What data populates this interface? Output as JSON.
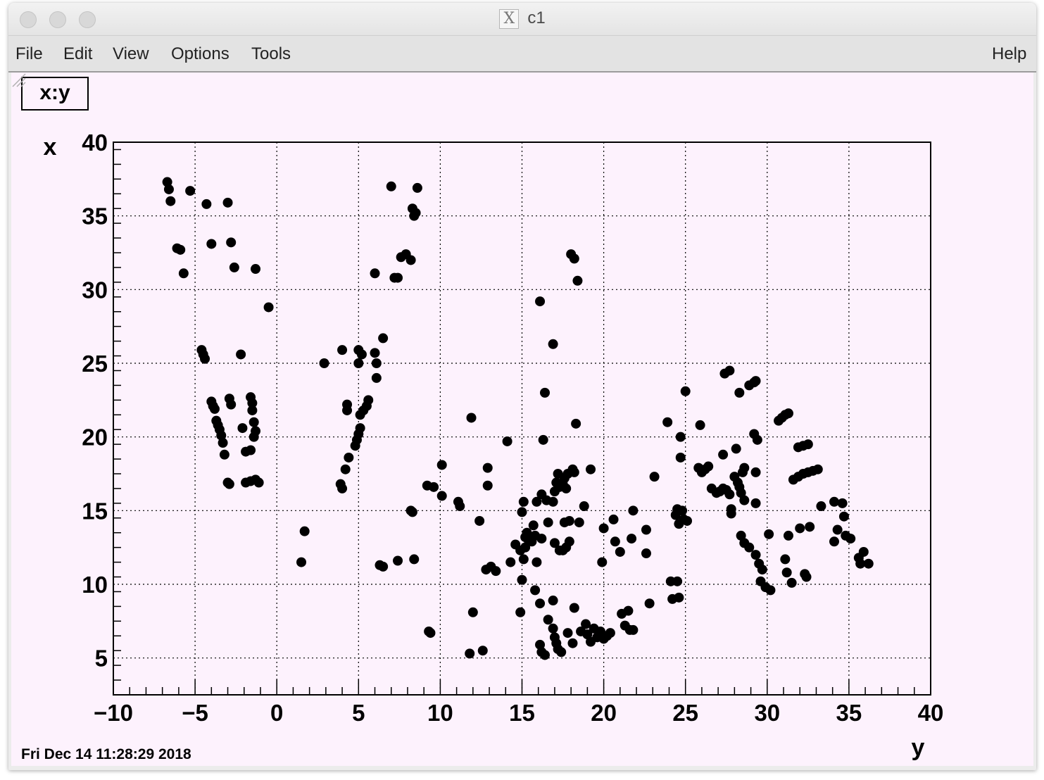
{
  "window": {
    "title": "c1",
    "x_glyph": "X",
    "buttons": [
      "close-button",
      "minimize-button",
      "zoom-button"
    ]
  },
  "menu": {
    "file": "File",
    "edit": "Edit",
    "view": "View",
    "options": "Options",
    "tools": "Tools",
    "help": "Help"
  },
  "canvas": {
    "title": "x:y",
    "date": "Fri Dec 14 11:28:29 2018",
    "background": "#fdf2fd"
  },
  "chart_data": {
    "type": "scatter",
    "title": "x:y",
    "xlabel": "y",
    "ylabel": "x",
    "xlim": [
      -10,
      40
    ],
    "ylim": [
      2.5,
      40
    ],
    "xticks": [
      -10,
      -5,
      0,
      5,
      10,
      15,
      20,
      25,
      30,
      35,
      40
    ],
    "yticks": [
      5,
      10,
      15,
      20,
      25,
      30,
      35,
      40
    ],
    "xtick_labels": [
      "−10",
      "−5",
      "0",
      "5",
      "10",
      "15",
      "20",
      "25",
      "30",
      "35",
      "40"
    ],
    "ytick_labels": [
      "5",
      "10",
      "15",
      "20",
      "25",
      "30",
      "35",
      "40"
    ],
    "grid": true,
    "marker_color": "#000000",
    "points": [
      [
        -6.7,
        37.3
      ],
      [
        -6.6,
        36.8
      ],
      [
        -6.5,
        36.0
      ],
      [
        -5.3,
        36.7
      ],
      [
        -4.3,
        35.8
      ],
      [
        -3.0,
        35.9
      ],
      [
        -6.1,
        32.8
      ],
      [
        -5.9,
        32.7
      ],
      [
        -5.7,
        31.1
      ],
      [
        -4.0,
        33.1
      ],
      [
        -2.8,
        33.2
      ],
      [
        -2.6,
        31.5
      ],
      [
        -1.3,
        31.4
      ],
      [
        -0.5,
        28.8
      ],
      [
        -4.6,
        25.9
      ],
      [
        -4.5,
        25.6
      ],
      [
        -4.4,
        25.3
      ],
      [
        -2.2,
        25.6
      ],
      [
        -4.0,
        22.4
      ],
      [
        -3.9,
        22.1
      ],
      [
        -3.8,
        21.9
      ],
      [
        -3.7,
        21.1
      ],
      [
        -3.6,
        20.8
      ],
      [
        -3.5,
        20.5
      ],
      [
        -3.4,
        20.1
      ],
      [
        -3.3,
        19.6
      ],
      [
        -3.2,
        18.8
      ],
      [
        -3.0,
        16.9
      ],
      [
        -2.9,
        16.8
      ],
      [
        -2.9,
        22.6
      ],
      [
        -2.8,
        22.2
      ],
      [
        -1.6,
        22.7
      ],
      [
        -1.5,
        22.3
      ],
      [
        -1.5,
        21.8
      ],
      [
        -1.4,
        21.0
      ],
      [
        -1.3,
        20.4
      ],
      [
        -1.4,
        20.0
      ],
      [
        -2.1,
        20.6
      ],
      [
        -1.9,
        19.0
      ],
      [
        -1.6,
        19.1
      ],
      [
        -1.9,
        16.9
      ],
      [
        -1.6,
        17.0
      ],
      [
        -1.3,
        17.1
      ],
      [
        -1.1,
        16.9
      ],
      [
        1.5,
        11.5
      ],
      [
        1.7,
        13.6
      ],
      [
        2.9,
        25.0
      ],
      [
        4.0,
        25.9
      ],
      [
        3.9,
        16.8
      ],
      [
        4.0,
        16.5
      ],
      [
        4.2,
        17.8
      ],
      [
        4.4,
        18.6
      ],
      [
        4.3,
        22.2
      ],
      [
        4.3,
        21.8
      ],
      [
        4.8,
        19.4
      ],
      [
        4.9,
        19.8
      ],
      [
        5.0,
        20.2
      ],
      [
        5.1,
        20.6
      ],
      [
        5.1,
        21.5
      ],
      [
        5.3,
        21.8
      ],
      [
        5.5,
        22.1
      ],
      [
        5.6,
        22.5
      ],
      [
        5.0,
        25.0
      ],
      [
        5.2,
        25.6
      ],
      [
        5.0,
        25.9
      ],
      [
        6.0,
        25.7
      ],
      [
        6.1,
        25.0
      ],
      [
        6.1,
        24.0
      ],
      [
        6.5,
        26.7
      ],
      [
        6.0,
        31.1
      ],
      [
        6.3,
        11.3
      ],
      [
        6.5,
        11.2
      ],
      [
        7.4,
        11.6
      ],
      [
        8.4,
        11.7
      ],
      [
        7.0,
        37.0
      ],
      [
        8.6,
        36.9
      ],
      [
        8.3,
        35.5
      ],
      [
        8.4,
        35.0
      ],
      [
        8.5,
        35.2
      ],
      [
        7.2,
        30.8
      ],
      [
        7.4,
        30.8
      ],
      [
        7.6,
        32.2
      ],
      [
        7.9,
        32.4
      ],
      [
        8.2,
        32.0
      ],
      [
        8.3,
        14.9
      ],
      [
        8.2,
        15.0
      ],
      [
        9.2,
        16.7
      ],
      [
        9.6,
        16.6
      ],
      [
        10.1,
        16.0
      ],
      [
        10.1,
        18.1
      ],
      [
        9.3,
        6.8
      ],
      [
        9.4,
        6.7
      ],
      [
        11.1,
        15.6
      ],
      [
        11.2,
        15.3
      ],
      [
        11.9,
        21.3
      ],
      [
        12.4,
        14.3
      ],
      [
        12.9,
        17.9
      ],
      [
        12.9,
        16.7
      ],
      [
        11.8,
        5.3
      ],
      [
        12.0,
        8.1
      ],
      [
        12.6,
        5.5
      ],
      [
        12.8,
        11.0
      ],
      [
        13.1,
        11.2
      ],
      [
        13.4,
        10.9
      ],
      [
        14.1,
        19.7
      ],
      [
        14.3,
        11.5
      ],
      [
        14.6,
        12.7
      ],
      [
        14.9,
        12.3
      ],
      [
        15.1,
        11.7
      ],
      [
        15.2,
        12.5
      ],
      [
        15.0,
        14.9
      ],
      [
        15.1,
        15.6
      ],
      [
        15.2,
        13.2
      ],
      [
        15.3,
        13.5
      ],
      [
        15.4,
        13.0
      ],
      [
        15.6,
        12.9
      ],
      [
        15.8,
        13.3
      ],
      [
        15.7,
        14.0
      ],
      [
        15.9,
        15.6
      ],
      [
        14.9,
        8.1
      ],
      [
        15.0,
        10.3
      ],
      [
        15.8,
        9.6
      ],
      [
        16.1,
        8.7
      ],
      [
        15.9,
        11.5
      ],
      [
        16.2,
        13.1
      ],
      [
        16.1,
        29.2
      ],
      [
        16.4,
        23.0
      ],
      [
        16.3,
        19.8
      ],
      [
        16.9,
        26.3
      ],
      [
        16.2,
        16.1
      ],
      [
        16.5,
        15.7
      ],
      [
        16.6,
        14.2
      ],
      [
        16.9,
        15.6
      ],
      [
        17.0,
        16.3
      ],
      [
        17.1,
        16.9
      ],
      [
        17.2,
        17.5
      ],
      [
        17.3,
        16.6
      ],
      [
        17.5,
        16.8
      ],
      [
        17.6,
        17.2
      ],
      [
        17.7,
        16.5
      ],
      [
        17.8,
        17.5
      ],
      [
        18.1,
        17.8
      ],
      [
        18.2,
        17.6
      ],
      [
        17.0,
        12.8
      ],
      [
        17.3,
        12.3
      ],
      [
        17.5,
        12.3
      ],
      [
        17.7,
        12.5
      ],
      [
        17.9,
        12.9
      ],
      [
        17.9,
        14.3
      ],
      [
        17.6,
        14.2
      ],
      [
        16.1,
        5.9
      ],
      [
        16.2,
        5.4
      ],
      [
        16.4,
        5.2
      ],
      [
        16.6,
        7.6
      ],
      [
        16.9,
        7.0
      ],
      [
        17.0,
        6.4
      ],
      [
        17.1,
        6.0
      ],
      [
        17.2,
        5.6
      ],
      [
        17.4,
        5.4
      ],
      [
        16.9,
        8.9
      ],
      [
        17.8,
        6.7
      ],
      [
        18.1,
        6.0
      ],
      [
        18.2,
        8.4
      ],
      [
        18.0,
        32.4
      ],
      [
        18.2,
        32.1
      ],
      [
        18.4,
        30.6
      ],
      [
        18.3,
        20.9
      ],
      [
        18.5,
        14.2
      ],
      [
        18.8,
        15.3
      ],
      [
        19.2,
        17.8
      ],
      [
        18.6,
        6.8
      ],
      [
        18.9,
        7.3
      ],
      [
        19.0,
        6.6
      ],
      [
        19.2,
        6.1
      ],
      [
        19.4,
        7.0
      ],
      [
        19.6,
        6.4
      ],
      [
        19.8,
        6.8
      ],
      [
        20.0,
        6.3
      ],
      [
        20.2,
        6.5
      ],
      [
        20.4,
        6.7
      ],
      [
        19.9,
        11.5
      ],
      [
        20.0,
        13.8
      ],
      [
        20.6,
        14.4
      ],
      [
        20.7,
        12.9
      ],
      [
        21.0,
        12.2
      ],
      [
        21.1,
        8.0
      ],
      [
        21.3,
        7.2
      ],
      [
        21.5,
        8.2
      ],
      [
        21.6,
        6.9
      ],
      [
        21.8,
        6.9
      ],
      [
        21.7,
        13.1
      ],
      [
        21.8,
        15.0
      ],
      [
        22.6,
        13.7
      ],
      [
        22.6,
        12.1
      ],
      [
        22.8,
        8.7
      ],
      [
        23.1,
        17.3
      ],
      [
        23.9,
        21.0
      ],
      [
        24.1,
        10.2
      ],
      [
        24.2,
        9.0
      ],
      [
        24.4,
        14.7
      ],
      [
        24.5,
        15.1
      ],
      [
        24.6,
        14.1
      ],
      [
        24.7,
        20.0
      ],
      [
        24.7,
        18.6
      ],
      [
        24.8,
        15.0
      ],
      [
        24.9,
        14.4
      ],
      [
        24.5,
        10.2
      ],
      [
        24.6,
        9.1
      ],
      [
        25.0,
        23.1
      ],
      [
        25.1,
        14.3
      ],
      [
        25.9,
        20.8
      ],
      [
        25.8,
        17.9
      ],
      [
        26.0,
        17.6
      ],
      [
        26.2,
        17.8
      ],
      [
        26.4,
        18.0
      ],
      [
        26.6,
        16.5
      ],
      [
        26.9,
        16.2
      ],
      [
        27.1,
        16.3
      ],
      [
        27.3,
        16.5
      ],
      [
        27.5,
        16.4
      ],
      [
        27.7,
        16.1
      ],
      [
        27.3,
        18.8
      ],
      [
        27.4,
        24.3
      ],
      [
        27.7,
        24.5
      ],
      [
        27.8,
        14.8
      ],
      [
        27.8,
        15.1
      ],
      [
        28.0,
        17.3
      ],
      [
        28.1,
        19.2
      ],
      [
        28.2,
        16.9
      ],
      [
        28.3,
        16.6
      ],
      [
        28.4,
        16.2
      ],
      [
        28.5,
        17.6
      ],
      [
        28.6,
        17.9
      ],
      [
        28.6,
        15.7
      ],
      [
        28.3,
        23.0
      ],
      [
        28.9,
        23.5
      ],
      [
        29.2,
        23.7
      ],
      [
        29.3,
        23.8
      ],
      [
        29.2,
        20.2
      ],
      [
        29.4,
        19.8
      ],
      [
        29.3,
        17.6
      ],
      [
        29.3,
        15.5
      ],
      [
        28.4,
        13.3
      ],
      [
        28.6,
        12.8
      ],
      [
        28.9,
        12.5
      ],
      [
        29.3,
        12.0
      ],
      [
        29.5,
        11.4
      ],
      [
        29.7,
        11.0
      ],
      [
        29.6,
        10.2
      ],
      [
        29.9,
        9.8
      ],
      [
        30.2,
        9.6
      ],
      [
        30.1,
        13.4
      ],
      [
        30.7,
        21.1
      ],
      [
        30.9,
        21.3
      ],
      [
        31.1,
        21.5
      ],
      [
        31.3,
        21.6
      ],
      [
        31.1,
        11.7
      ],
      [
        31.2,
        10.8
      ],
      [
        31.5,
        10.1
      ],
      [
        31.3,
        13.3
      ],
      [
        31.6,
        17.1
      ],
      [
        31.9,
        17.3
      ],
      [
        32.2,
        17.5
      ],
      [
        32.5,
        17.6
      ],
      [
        32.8,
        17.7
      ],
      [
        33.1,
        17.8
      ],
      [
        31.9,
        19.3
      ],
      [
        32.2,
        19.4
      ],
      [
        32.5,
        19.5
      ],
      [
        32.0,
        13.8
      ],
      [
        32.3,
        10.7
      ],
      [
        32.4,
        10.5
      ],
      [
        32.6,
        13.9
      ],
      [
        33.3,
        15.3
      ],
      [
        34.1,
        12.9
      ],
      [
        34.3,
        13.7
      ],
      [
        34.1,
        15.6
      ],
      [
        34.6,
        15.5
      ],
      [
        34.7,
        14.6
      ],
      [
        34.8,
        13.3
      ],
      [
        35.1,
        13.1
      ],
      [
        35.6,
        11.8
      ],
      [
        35.7,
        11.4
      ],
      [
        35.9,
        12.2
      ],
      [
        36.2,
        11.4
      ]
    ]
  }
}
